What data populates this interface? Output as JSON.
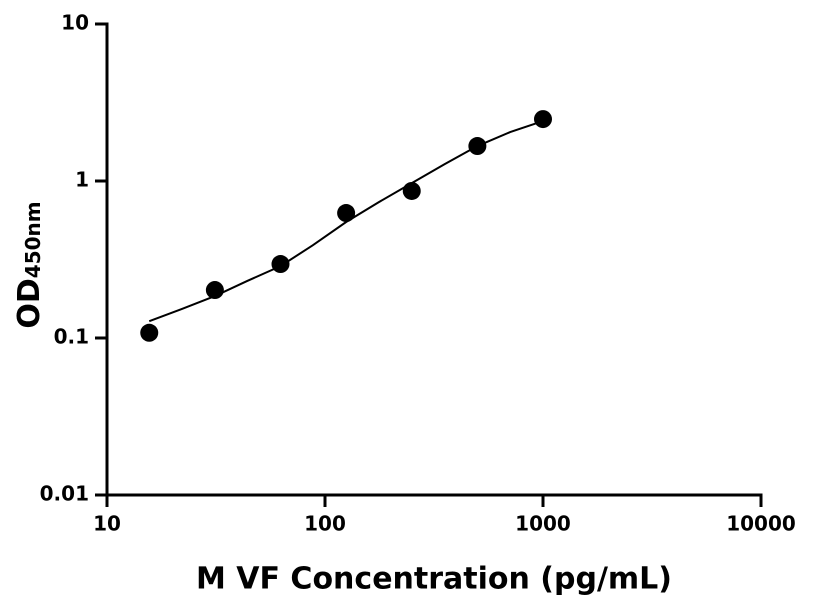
{
  "chart_data": {
    "type": "scatter",
    "xlabel": "M VF Concentration (pg/mL)",
    "ylabel": "OD",
    "ylabel_sub": "450nm",
    "xscale": "log",
    "yscale": "log",
    "xlim": [
      10,
      10000
    ],
    "xticks": [
      10,
      100,
      1000,
      10000
    ],
    "ylim": [
      0.01,
      10
    ],
    "yticks": [
      0.01,
      0.1,
      1,
      10
    ],
    "series": [
      {
        "type": "scatter",
        "color": "#000000",
        "x": [
          15.625,
          31.25,
          62.5,
          125,
          250,
          500,
          1000
        ],
        "values": [
          0.108,
          0.202,
          0.296,
          0.625,
          0.864,
          1.67,
          2.48
        ]
      },
      {
        "type": "line",
        "color": "#000000",
        "x": [
          15.625,
          22,
          31.25,
          44,
          62.5,
          88,
          125,
          177,
          250,
          354,
          500,
          707,
          1000
        ],
        "values": [
          0.128,
          0.153,
          0.185,
          0.231,
          0.287,
          0.39,
          0.548,
          0.735,
          0.97,
          1.28,
          1.67,
          2.05,
          2.41
        ]
      }
    ]
  }
}
